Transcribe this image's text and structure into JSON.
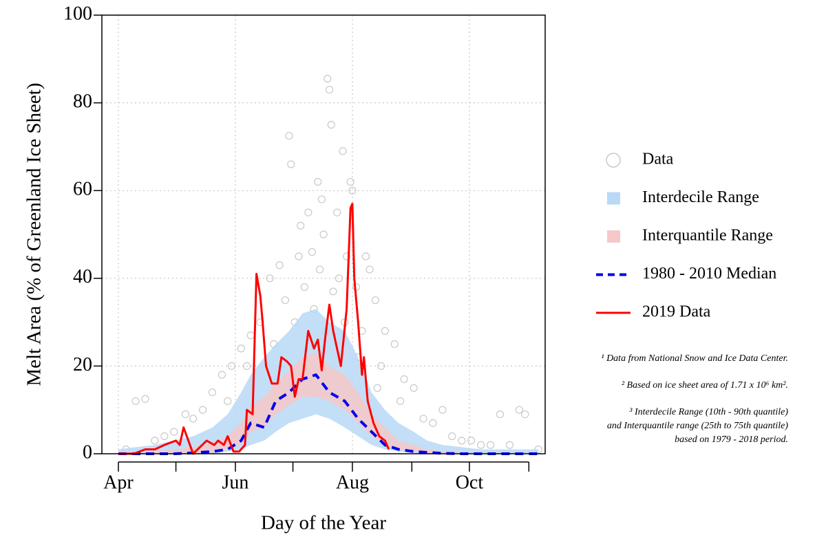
{
  "chart_data": {
    "type": "line",
    "x_label": "Day of the Year",
    "y_label": "Melt Area (% of Greenland Ice Sheet)",
    "xlim": [
      82.4,
      313.5
    ],
    "ylim": [
      0,
      100
    ],
    "xticks": [
      {
        "value": 91,
        "label": "Apr"
      },
      {
        "value": 152,
        "label": "Jun"
      },
      {
        "value": 213,
        "label": "Aug"
      },
      {
        "value": 274,
        "label": "Oct"
      }
    ],
    "xminorticks": [
      121,
      182,
      244,
      305
    ],
    "yticks": [
      0,
      20,
      40,
      60,
      80,
      100
    ],
    "grid": true,
    "series": [
      {
        "name": "Data",
        "type": "scatter",
        "color": "#c8c8c8",
        "x": [
          200,
          201,
          202,
          180,
          181,
          208,
          212,
          195,
          197,
          213,
          205,
          190,
          186,
          220,
          222,
          160,
          155,
          100,
          105,
          140,
          150,
          230,
          240,
          260,
          290,
          300,
          303,
          170,
          175,
          185,
          192,
          198,
          206,
          210,
          215,
          225,
          235,
          245,
          255,
          265,
          275,
          285,
          295,
          120,
          110,
          130,
          135,
          145,
          165,
          178,
          188,
          196,
          203,
          209,
          218,
          228,
          172,
          183,
          193,
          199,
          216,
          226,
          238,
          250,
          158,
          148,
          126,
          115,
          95,
          270,
          280,
          310
        ],
        "values": [
          85.5,
          83,
          75,
          72.5,
          66,
          69,
          62,
          62,
          58,
          60,
          55,
          55,
          52,
          45,
          42,
          27,
          24,
          12,
          12.5,
          14,
          20,
          28,
          17,
          10,
          9,
          10,
          9,
          40,
          43,
          45,
          46,
          50,
          40,
          45,
          38,
          35,
          25,
          15,
          7,
          4,
          3,
          2,
          2,
          5,
          3,
          8,
          10,
          18,
          30,
          35,
          38,
          42,
          37,
          30,
          28,
          20,
          25,
          30,
          33,
          28,
          22,
          15,
          12,
          8,
          20,
          12,
          9,
          4,
          1,
          3,
          2,
          1
        ]
      },
      {
        "name": "Interdecile Range",
        "type": "band",
        "color": "#b9d9f6",
        "x": [
          91,
          100,
          110,
          120,
          130,
          140,
          148,
          155,
          160,
          167,
          173,
          180,
          187,
          194,
          201,
          209,
          216,
          223,
          230,
          237,
          245,
          252,
          260,
          270,
          280,
          290,
          300,
          310
        ],
        "upper": [
          1,
          1.5,
          2,
          3,
          4,
          6,
          9,
          14,
          18,
          22,
          25,
          28,
          32,
          33,
          30,
          28,
          22,
          14,
          10,
          7,
          5,
          3,
          2,
          1.5,
          1,
          1,
          1,
          1
        ],
        "lower": [
          0,
          0,
          0,
          0,
          0,
          0,
          0.5,
          1,
          2,
          3,
          5,
          7,
          8,
          9,
          8,
          6,
          4,
          2,
          1,
          0.5,
          0.2,
          0,
          0,
          0,
          0,
          0,
          0,
          0
        ]
      },
      {
        "name": "Interquantile Range",
        "type": "band",
        "color": "#f6c8c8",
        "x": [
          91,
          100,
          110,
          120,
          130,
          140,
          148,
          155,
          160,
          167,
          173,
          180,
          187,
          194,
          201,
          209,
          216,
          223,
          230,
          237,
          245,
          252,
          260,
          270,
          280,
          290,
          300,
          310
        ],
        "upper": [
          0.3,
          0.5,
          0.7,
          1,
          1.5,
          2.5,
          4,
          7,
          11,
          13,
          16,
          19,
          22,
          23,
          20,
          18,
          14,
          9,
          6,
          3,
          2,
          1,
          0.5,
          0.3,
          0.2,
          0.2,
          0.2,
          0.2
        ],
        "lower": [
          0,
          0,
          0,
          0,
          0,
          0.2,
          1,
          2,
          5,
          6,
          9,
          11,
          13,
          13,
          12,
          10,
          7,
          4,
          2,
          1,
          0.5,
          0.2,
          0,
          0,
          0,
          0,
          0,
          0
        ]
      },
      {
        "name": "1980 - 2010 Median",
        "type": "line",
        "style": "dashed",
        "color": "#0000ee",
        "x": [
          91,
          100,
          110,
          120,
          130,
          140,
          148,
          155,
          160,
          167,
          173,
          180,
          187,
          194,
          201,
          209,
          216,
          223,
          230,
          237,
          245,
          252,
          260,
          270,
          280,
          290,
          300,
          310
        ],
        "values": [
          0,
          0,
          0,
          0,
          0.2,
          0.5,
          1,
          3,
          7,
          6,
          12,
          14,
          17,
          18,
          14,
          12,
          8,
          5,
          2,
          1,
          0.5,
          0.3,
          0.1,
          0,
          0,
          0,
          0,
          0
        ]
      },
      {
        "name": "2019 Data",
        "type": "line",
        "style": "solid",
        "color": "#ff0000",
        "x": [
          91,
          99,
          105,
          110,
          115,
          121,
          123,
          125,
          130,
          137,
          141,
          143,
          146,
          148,
          151,
          154,
          157,
          158,
          161,
          163,
          165,
          166,
          168,
          171,
          174,
          176,
          179,
          181,
          183,
          185,
          187,
          190,
          193,
          195,
          197,
          199,
          201,
          203,
          207,
          210,
          212,
          213,
          214,
          216,
          218,
          219,
          221,
          224,
          227,
          230,
          232
        ],
        "values": [
          0,
          0,
          1,
          1,
          2,
          3,
          2,
          6,
          0,
          3,
          2,
          3,
          2,
          4,
          0.5,
          0.5,
          2,
          10,
          9,
          41,
          36,
          31,
          20,
          16,
          16,
          22,
          21,
          20,
          13,
          17,
          17,
          28,
          24,
          26,
          19,
          27,
          34,
          28,
          20,
          33,
          56,
          57,
          40,
          30,
          18,
          22,
          12,
          7,
          4,
          3,
          1
        ]
      }
    ],
    "notes": [
      "¹ Data from National Snow and Ice Data Center.",
      "²  Based on ice sheet area of 1.71 x 10⁶ km².",
      "³ Interdecile Range (10th - 90th quantile)",
      "and Interquantile range (25th to 75th quantile)",
      "based on 1979 - 2018 period."
    ]
  }
}
